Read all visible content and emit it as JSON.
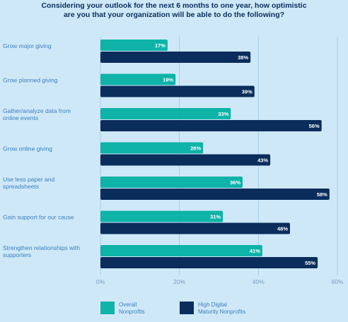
{
  "title": {
    "line1": "Considering your outlook for the next 6 months to one year, how optimistic",
    "line2": "are you that your organization will be able to do the following?"
  },
  "colors": {
    "overall": "#0fb3a8",
    "high": "#0a2d5c",
    "grid": "#9fc6e4"
  },
  "chart_data": {
    "type": "bar",
    "orientation": "horizontal",
    "categories": [
      [
        "Grow major giving"
      ],
      [
        "Grow planned giving"
      ],
      [
        "Gather/analyze data from",
        "online events"
      ],
      [
        "Grow online giving"
      ],
      [
        "Use less paper and",
        "spreadsheets"
      ],
      [
        "Gain support for our cause"
      ],
      [
        "Strengthen relationships with",
        "supporters"
      ]
    ],
    "series": [
      {
        "name": "Overall Nonprofits",
        "values": [
          17,
          19,
          33,
          26,
          36,
          31,
          41
        ]
      },
      {
        "name": "High Digital Maturity Nonprofits",
        "values": [
          38,
          39,
          56,
          43,
          58,
          48,
          55
        ]
      }
    ],
    "value_suffix": "%",
    "xlim": [
      0,
      60
    ],
    "xticks": [
      "0%",
      "20%",
      "40%",
      "60%"
    ],
    "grid": true,
    "legend_position": "bottom"
  },
  "legend": {
    "overall": [
      "Overall",
      "Nonprofits"
    ],
    "high": [
      "High Digital",
      "Maturity Nonprofits"
    ]
  }
}
